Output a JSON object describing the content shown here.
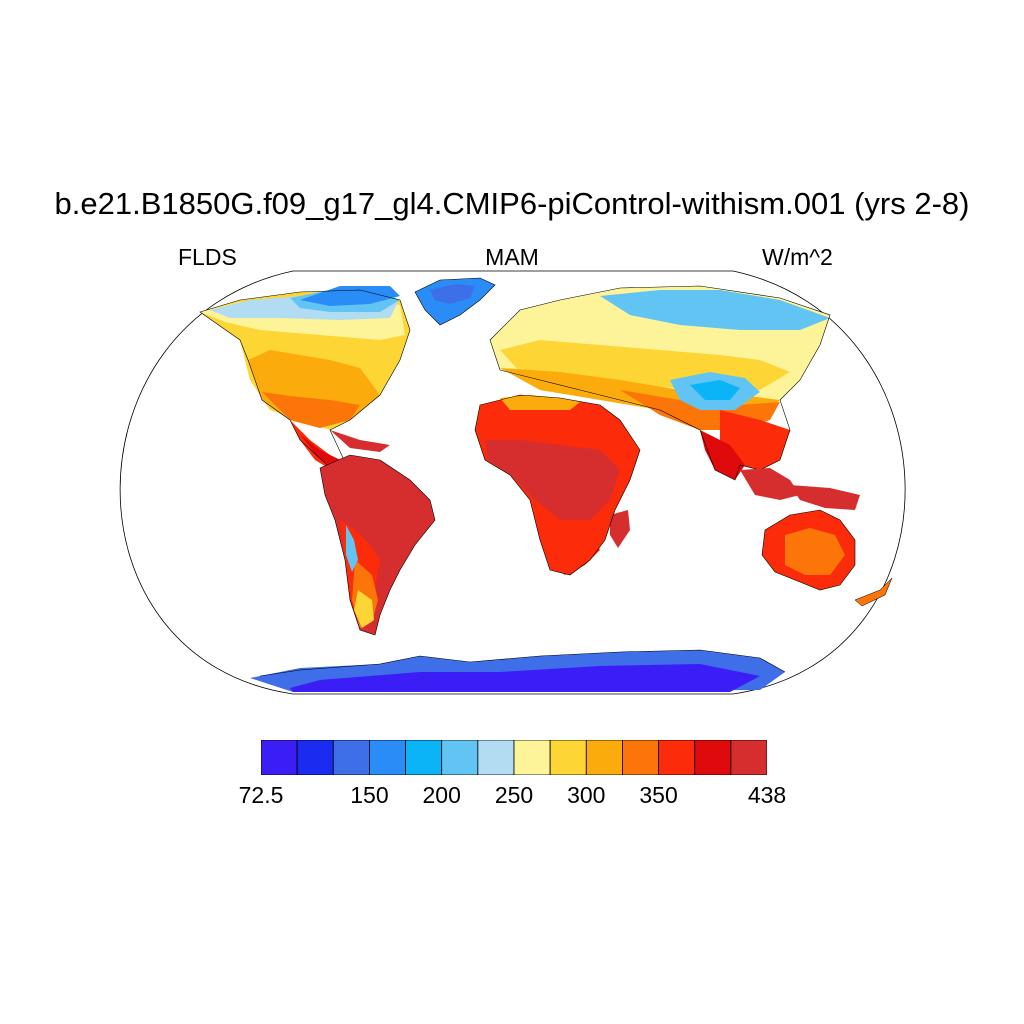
{
  "title": "b.e21.B1850G.f09_g17_gl4.CMIP6-piControl-withism.001 (yrs 2-8)",
  "left_label": "FLDS",
  "center_label": "MAM",
  "right_label": "W/m^2",
  "projection": "robinson",
  "colorbar": {
    "colors": [
      "#3b1ef5",
      "#1c2bf0",
      "#3e6ee8",
      "#2a8cf6",
      "#0bb4f7",
      "#62c4f2",
      "#b2dcf2",
      "#fdf399",
      "#fdd635",
      "#fbac0c",
      "#fc7508",
      "#fc2b0a",
      "#de0a0b",
      "#d62e2f"
    ],
    "labels": [
      {
        "text": "72.5",
        "position": 0
      },
      {
        "text": "150",
        "position": 3
      },
      {
        "text": "200",
        "position": 5
      },
      {
        "text": "250",
        "position": 7
      },
      {
        "text": "300",
        "position": 9
      },
      {
        "text": "350",
        "position": 11
      },
      {
        "text": "438",
        "position": 14
      }
    ]
  }
}
